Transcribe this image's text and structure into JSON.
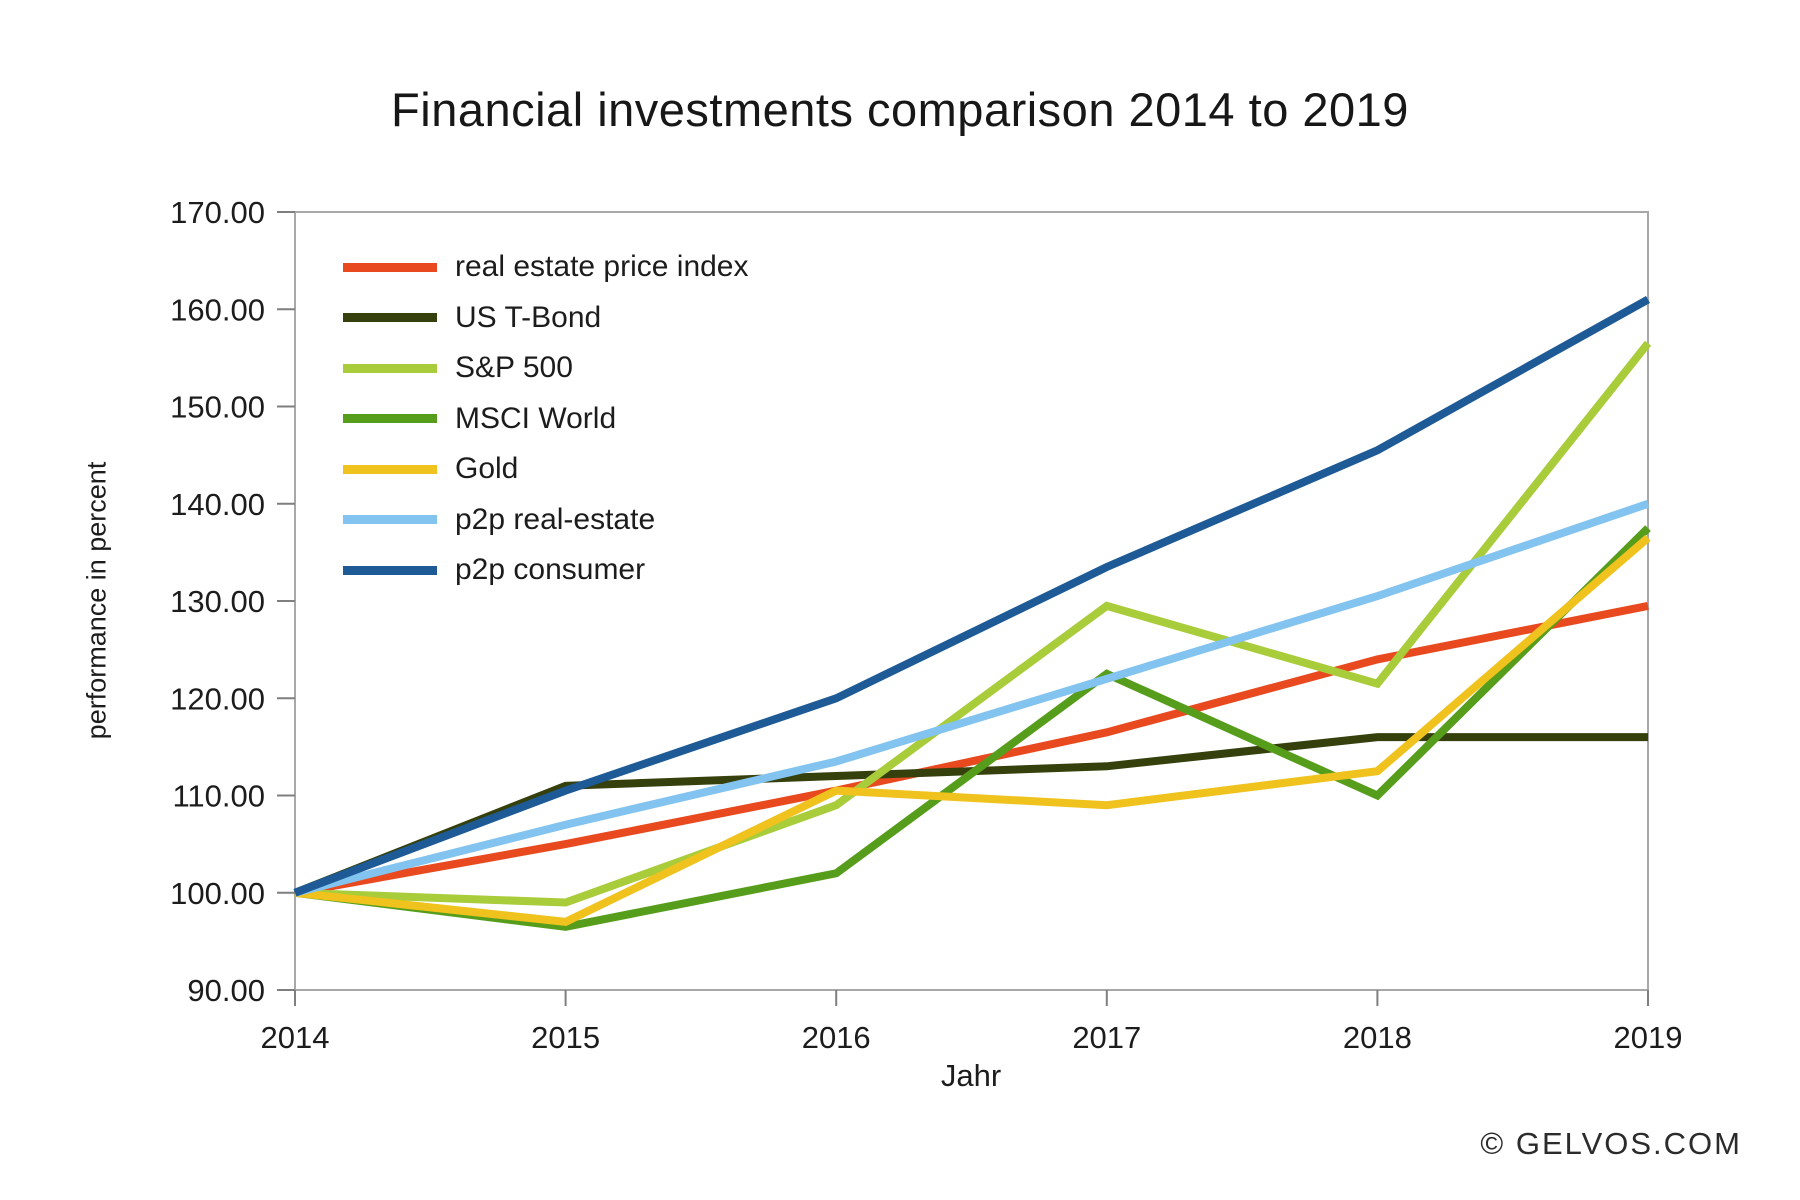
{
  "watermark": "© GELVOS.COM",
  "chart_data": {
    "type": "line",
    "title": "Financial investments comparison 2014 to 2019",
    "xlabel": "Jahr",
    "ylabel": "performance in percent",
    "categories": [
      "2014",
      "2015",
      "2016",
      "2017",
      "2018",
      "2019"
    ],
    "series": [
      {
        "name": "real estate price index",
        "color": "#e8491f",
        "values": [
          100,
          105,
          110.5,
          116.5,
          124,
          129.5
        ]
      },
      {
        "name": "US T-Bond",
        "color": "#35400d",
        "values": [
          100,
          111,
          112,
          113,
          116,
          116
        ]
      },
      {
        "name": "S&P 500",
        "color": "#a9cc3a",
        "values": [
          100,
          99,
          109,
          129.5,
          121.5,
          156.5
        ]
      },
      {
        "name": "MSCI World",
        "color": "#579d1c",
        "values": [
          100,
          96.5,
          102,
          122.5,
          110,
          137.5
        ]
      },
      {
        "name": "Gold",
        "color": "#f0c21d",
        "values": [
          100,
          97,
          110.5,
          109,
          112.5,
          136.5
        ]
      },
      {
        "name": "p2p real-estate",
        "color": "#82c3ef",
        "values": [
          100,
          107,
          113.5,
          122,
          130.5,
          140
        ]
      },
      {
        "name": "p2p consumer",
        "color": "#1d5a96",
        "values": [
          100,
          110.5,
          120,
          133.5,
          145.5,
          161
        ]
      }
    ],
    "ylim": [
      90,
      170
    ],
    "y_tick_labels": [
      "90.00",
      "100.00",
      "110.00",
      "120.00",
      "130.00",
      "140.00",
      "150.00",
      "160.00",
      "170.00"
    ],
    "grid": false,
    "legend_position": "top-left-inside",
    "axis_color": "#a8a8a8",
    "tick_color": "#7f7f7f"
  }
}
